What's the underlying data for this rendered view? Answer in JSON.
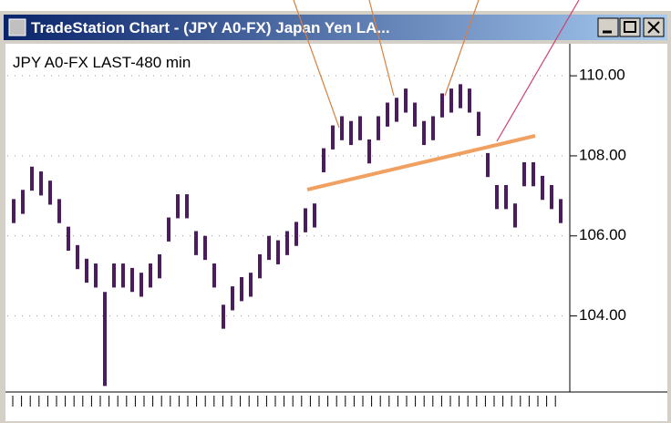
{
  "window": {
    "title": "TradeStation Chart - (JPY A0-FX) Japan Yen LA..."
  },
  "chart_data": {
    "type": "hilo",
    "title": "JPY A0-FX LAST-480 min",
    "color": "#4b1c5e",
    "high": [
      106.92,
      107.15,
      107.73,
      107.61,
      107.38,
      106.92,
      106.23,
      105.77,
      105.43,
      105.31,
      104.6,
      105.31,
      105.31,
      105.2,
      105.08,
      105.31,
      105.54,
      106.46,
      107.04,
      107.04,
      106.12,
      106.0,
      105.31,
      104.28,
      104.74,
      104.97,
      105.08,
      105.54,
      106.0,
      105.89,
      106.12,
      106.35,
      106.69,
      106.81,
      108.19,
      108.76,
      108.99,
      108.87,
      108.99,
      108.41,
      108.99,
      109.33,
      109.45,
      109.68,
      109.33,
      108.87,
      108.99,
      109.56,
      109.68,
      109.79,
      109.68,
      109.1,
      108.07,
      107.27,
      107.27,
      106.81,
      107.84,
      107.84,
      107.5,
      107.27,
      106.92
    ],
    "low": [
      106.32,
      106.55,
      107.13,
      107.01,
      106.78,
      106.32,
      105.63,
      105.17,
      104.83,
      104.71,
      102.25,
      104.71,
      104.71,
      104.6,
      104.48,
      104.71,
      104.94,
      105.86,
      106.44,
      106.44,
      105.52,
      105.4,
      104.71,
      103.68,
      104.14,
      104.37,
      104.48,
      104.94,
      105.4,
      105.29,
      105.52,
      105.75,
      106.09,
      106.21,
      107.59,
      108.16,
      108.39,
      108.27,
      108.39,
      107.81,
      108.39,
      108.73,
      108.85,
      109.08,
      108.73,
      108.27,
      108.39,
      108.96,
      109.08,
      109.19,
      109.08,
      108.5,
      107.47,
      106.67,
      106.67,
      106.21,
      107.24,
      107.24,
      106.9,
      106.67,
      106.32
    ],
    "ylim": [
      102.1,
      110.8
    ],
    "yticks": [
      {
        "value": 104,
        "label": "104.00"
      },
      {
        "value": 106,
        "label": "106.00"
      },
      {
        "value": 108,
        "label": "108.00"
      },
      {
        "value": 110,
        "label": "110.00"
      }
    ],
    "grid": true
  }
}
